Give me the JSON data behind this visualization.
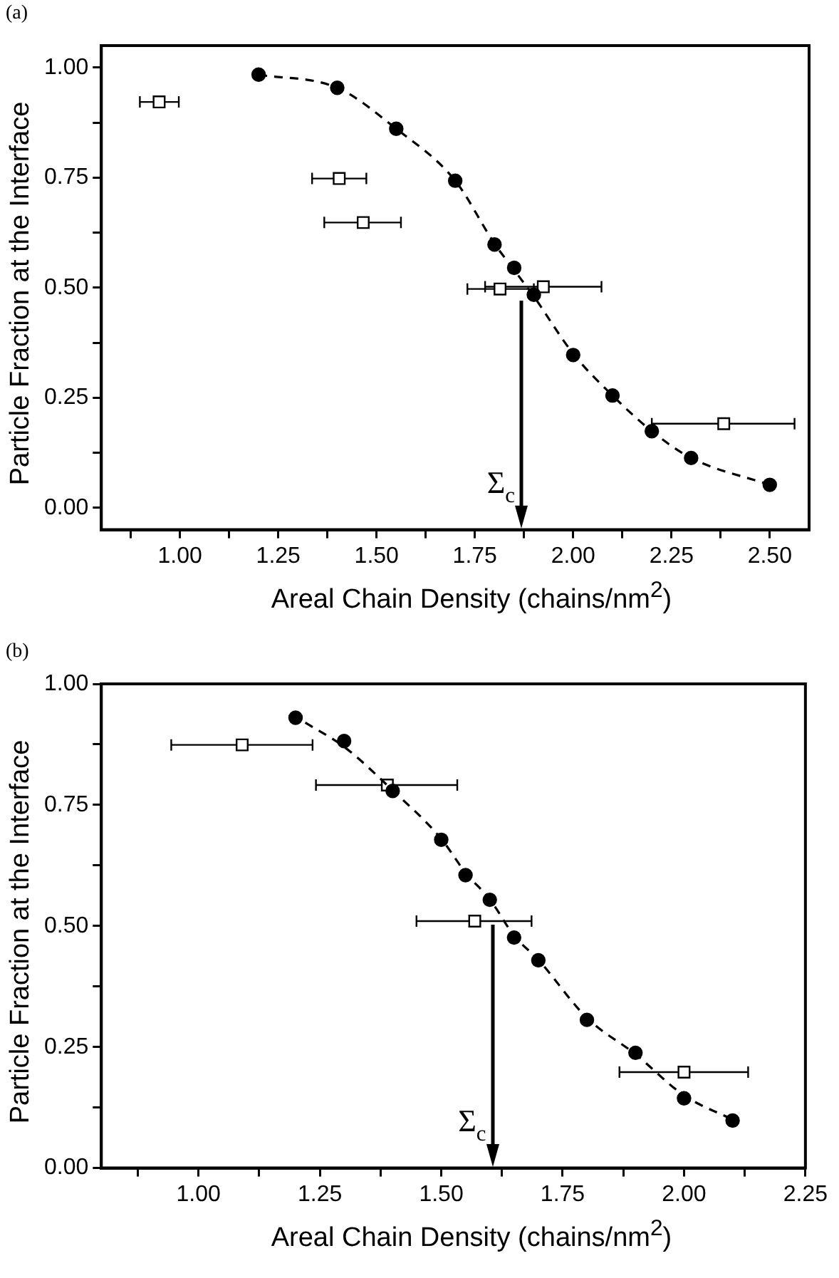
{
  "chart_data": [
    {
      "type": "scatter",
      "title": "(a)",
      "xlabel": "Areal Chain Density (chains/nm$^{2}$)",
      "ylabel": "Particle Fraction at the Interface",
      "xlim": [
        0.8,
        2.6
      ],
      "ylim": [
        -0.05,
        1.05
      ],
      "xticks": [
        {
          "value": 0.875,
          "label": null
        },
        {
          "value": 1,
          "label": "1.00"
        },
        {
          "value": 1.125,
          "label": null
        },
        {
          "value": 1.25,
          "label": "1.25"
        },
        {
          "value": 1.375,
          "label": null
        },
        {
          "value": 1.5,
          "label": "1.50"
        },
        {
          "value": 1.625,
          "label": null
        },
        {
          "value": 1.75,
          "label": "1.75"
        },
        {
          "value": 1.875,
          "label": null
        },
        {
          "value": 2,
          "label": "2.00"
        },
        {
          "value": 2.125,
          "label": null
        },
        {
          "value": 2.25,
          "label": "2.25"
        },
        {
          "value": 2.375,
          "label": null
        },
        {
          "value": 2.5,
          "label": "2.50"
        }
      ],
      "yticks": [
        {
          "value": 0,
          "label": "0.00"
        },
        {
          "value": 0.125,
          "label": null
        },
        {
          "value": 0.25,
          "label": "0.25"
        },
        {
          "value": 0.375,
          "label": null
        },
        {
          "value": 0.5,
          "label": "0.50"
        },
        {
          "value": 0.625,
          "label": null
        },
        {
          "value": 0.75,
          "label": "0.75"
        },
        {
          "value": 0.875,
          "label": null
        },
        {
          "value": 1,
          "label": "1.00"
        }
      ],
      "grid": false,
      "legend": false,
      "series": [
        {
          "type": "line",
          "color": "#000000",
          "marker": "none",
          "line_style": "dashed",
          "x": [
            1.2,
            1.4,
            1.55,
            1.7,
            1.8,
            1.85,
            1.9,
            2.0,
            2.1,
            2.2,
            2.3,
            2.5
          ],
          "values": [
            0.984,
            0.954,
            0.861,
            0.743,
            0.6,
            0.54,
            0.48,
            0.35,
            0.255,
            0.174,
            0.113,
            0.052
          ]
        },
        {
          "type": "scatter",
          "color": "#000000",
          "marker": "circle",
          "x": [
            1.2,
            1.4,
            1.55,
            1.7,
            1.8,
            1.85,
            1.9,
            2.0,
            2.1,
            2.2,
            2.3,
            2.5
          ],
          "values": [
            0.984,
            0.954,
            0.861,
            0.743,
            0.598,
            0.545,
            0.484,
            0.347,
            0.255,
            0.174,
            0.113,
            0.052
          ]
        },
        {
          "type": "scatter",
          "color": "#000000",
          "marker": "square",
          "x": [
            0.947,
            1.405,
            1.466,
            1.814,
            1.924,
            2.383
          ],
          "values": [
            0.922,
            0.748,
            0.648,
            0.497,
            0.502,
            0.191
          ],
          "xerrors": [
            [
              0.898,
              0.997
            ],
            [
              1.336,
              1.474
            ],
            [
              1.367,
              1.562
            ],
            [
              1.731,
              1.9
            ],
            [
              1.776,
              2.072
            ],
            [
              2.2,
              2.563
            ]
          ]
        }
      ],
      "ref_lines": [
        {
          "axis": "x",
          "value": 1.87,
          "label": "Σ$_{c}$"
        }
      ]
    },
    {
      "type": "scatter",
      "title": "(b)",
      "xlabel": "Areal Chain Density (chains/nm$^{2}$)",
      "ylabel": "Particle Fraction at the Interface",
      "xlim": [
        0.8,
        2.25
      ],
      "ylim": [
        0,
        1
      ],
      "xticks": [
        {
          "value": 0.875,
          "label": null
        },
        {
          "value": 1,
          "label": "1.00"
        },
        {
          "value": 1.125,
          "label": null
        },
        {
          "value": 1.25,
          "label": "1.25"
        },
        {
          "value": 1.375,
          "label": null
        },
        {
          "value": 1.5,
          "label": "1.50"
        },
        {
          "value": 1.625,
          "label": null
        },
        {
          "value": 1.75,
          "label": "1.75"
        },
        {
          "value": 1.875,
          "label": null
        },
        {
          "value": 2,
          "label": "2.00"
        },
        {
          "value": 2.125,
          "label": null
        },
        {
          "value": 2.25,
          "label": "2.25"
        }
      ],
      "yticks": [
        {
          "value": 0,
          "label": "0.00"
        },
        {
          "value": 0.125,
          "label": null
        },
        {
          "value": 0.25,
          "label": "0.25"
        },
        {
          "value": 0.375,
          "label": null
        },
        {
          "value": 0.5,
          "label": "0.50"
        },
        {
          "value": 0.625,
          "label": null
        },
        {
          "value": 0.75,
          "label": "0.75"
        },
        {
          "value": 0.875,
          "label": null
        },
        {
          "value": 1,
          "label": "1.00"
        }
      ],
      "grid": false,
      "legend": false,
      "series": [
        {
          "type": "line",
          "color": "#000000",
          "marker": "none",
          "line_style": "dashed",
          "x": [
            1.22,
            1.3,
            1.4,
            1.5,
            1.55,
            1.6,
            1.65,
            1.7,
            1.8,
            1.9,
            2.0,
            2.1
          ],
          "values": [
            0.92,
            0.87,
            0.78,
            0.68,
            0.61,
            0.555,
            0.48,
            0.43,
            0.31,
            0.235,
            0.15,
            0.1
          ]
        },
        {
          "type": "scatter",
          "color": "#000000",
          "marker": "circle",
          "x": [
            1.2,
            1.3,
            1.4,
            1.5,
            1.55,
            1.6,
            1.65,
            1.7,
            1.8,
            1.9,
            2.0,
            2.1
          ],
          "values": [
            0.93,
            0.882,
            0.779,
            0.678,
            0.605,
            0.554,
            0.476,
            0.429,
            0.306,
            0.238,
            0.144,
            0.098
          ]
        },
        {
          "type": "scatter",
          "color": "#000000",
          "marker": "square",
          "x": [
            1.09,
            1.389,
            1.569,
            2.0
          ],
          "values": [
            0.874,
            0.791,
            0.51,
            0.198
          ],
          "xerrors": [
            [
              0.944,
              1.235
            ],
            [
              1.242,
              1.533
            ],
            [
              1.449,
              1.686
            ],
            [
              1.867,
              2.132
            ]
          ]
        }
      ],
      "ref_lines": [
        {
          "axis": "x",
          "value": 1.607,
          "label": "Σ$_{c}$"
        }
      ]
    }
  ]
}
